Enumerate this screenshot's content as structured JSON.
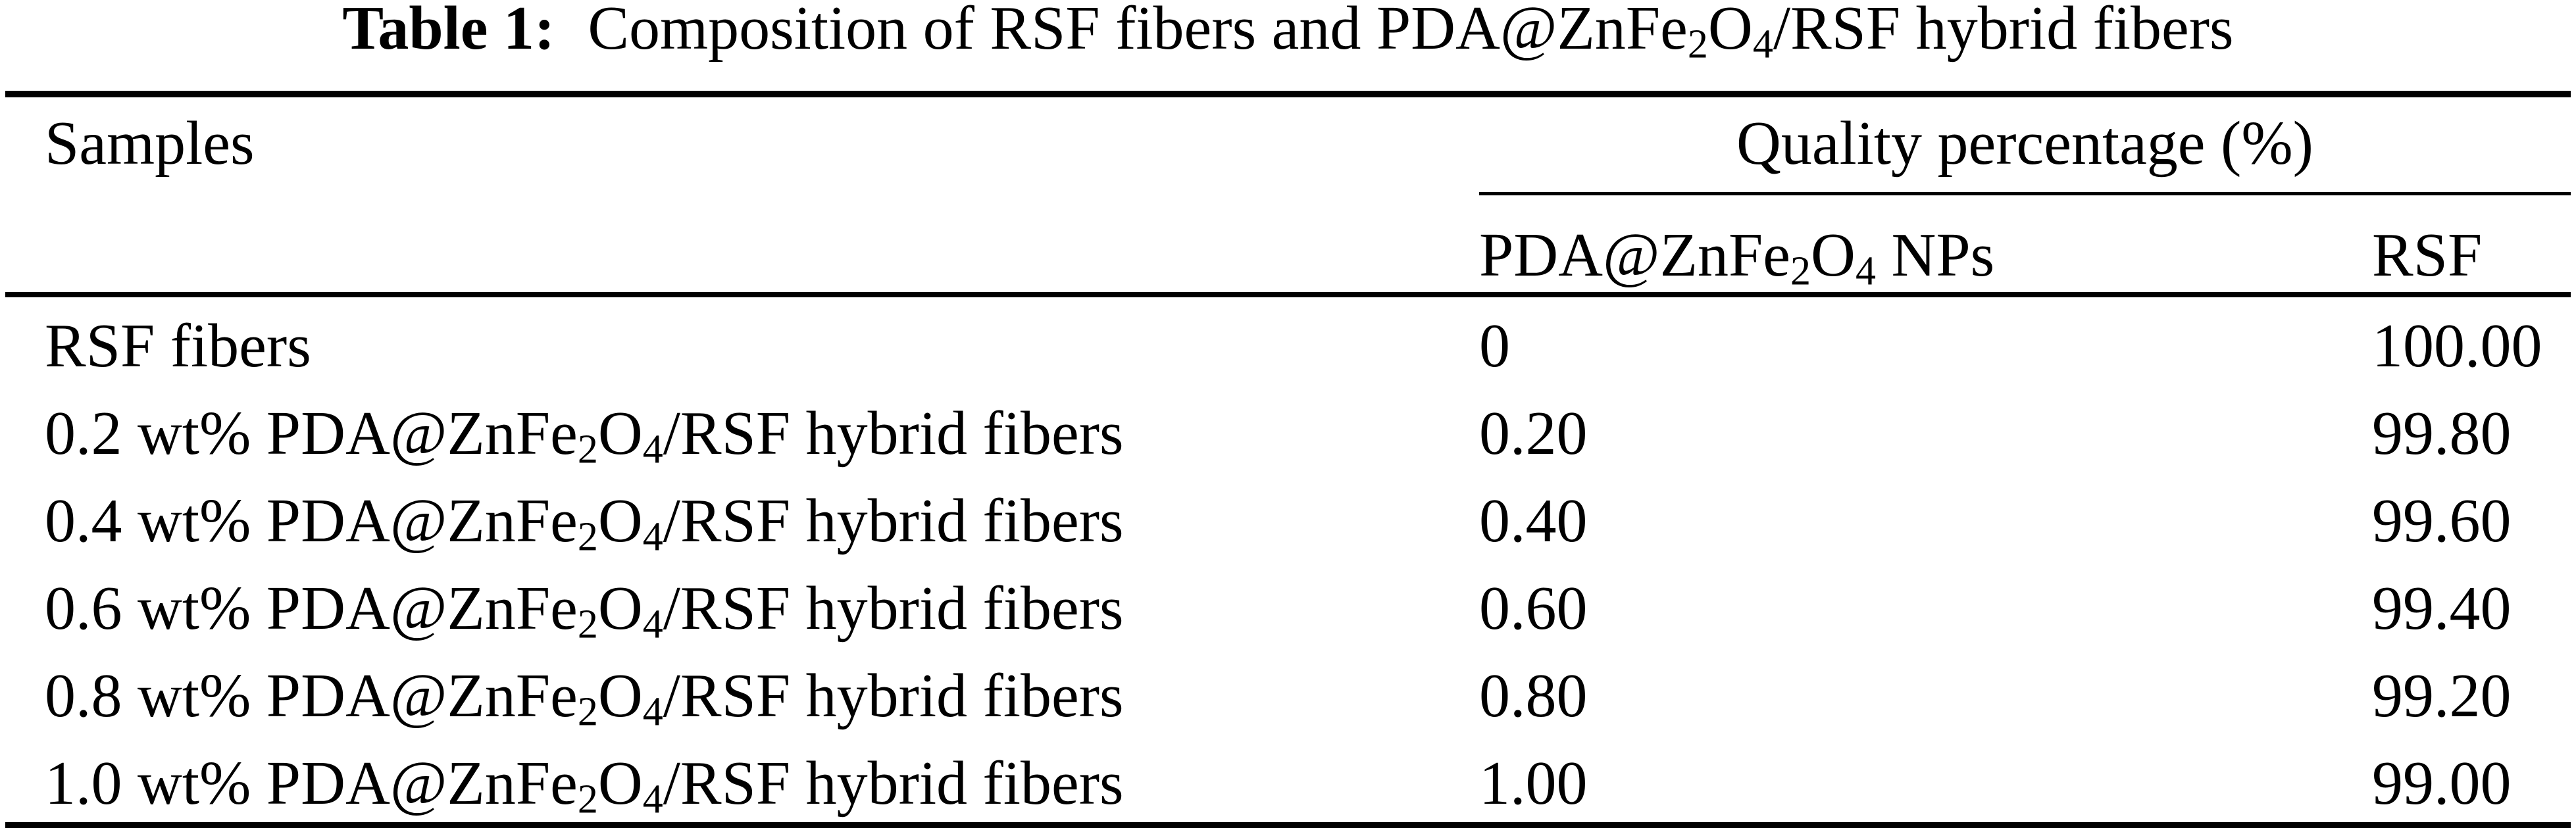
{
  "title": {
    "label": "Table 1:",
    "text": "Composition of RSF fibers and PDA@ZnFe_2O_4/RSF hybrid fibers"
  },
  "table": {
    "col1_header": "Samples",
    "group_header": "Quality percentage (%)",
    "col2_header": "PDA@ZnFe_2O_4 NPs",
    "col3_header": "RSF",
    "rows": [
      {
        "sample": "RSF fibers",
        "np": "0",
        "rsf": "100.00"
      },
      {
        "sample": "0.2 wt% PDA@ZnFe_2O_4/RSF hybrid fibers",
        "np": "0.20",
        "rsf": "99.80"
      },
      {
        "sample": "0.4 wt% PDA@ZnFe_2O_4/RSF hybrid fibers",
        "np": "0.40",
        "rsf": "99.60"
      },
      {
        "sample": "0.6 wt% PDA@ZnFe_2O_4/RSF hybrid fibers",
        "np": "0.60",
        "rsf": "99.40"
      },
      {
        "sample": "0.8 wt% PDA@ZnFe_2O_4/RSF hybrid fibers",
        "np": "0.80",
        "rsf": "99.20"
      },
      {
        "sample": "1.0 wt% PDA@ZnFe_2O_4/RSF hybrid fibers",
        "np": "1.00",
        "rsf": "99.00"
      }
    ]
  },
  "colors": {
    "text": "#000000",
    "background": "#ffffff",
    "rule": "#000000"
  }
}
